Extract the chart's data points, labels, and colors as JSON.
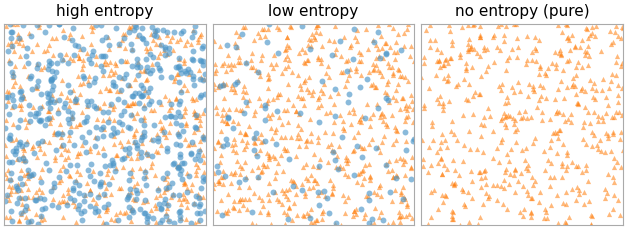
{
  "titles": [
    "high entropy",
    "low entropy",
    "no entropy (pure)"
  ],
  "n_high_orange": 500,
  "n_high_blue": 500,
  "n_low_orange": 600,
  "n_low_blue": 100,
  "n_pure_orange": 500,
  "n_pure_blue": 0,
  "orange_color": "#ff7f0e",
  "blue_color": "#4c96c8",
  "marker_orange": "^",
  "marker_blue": "o",
  "marker_size_orange": 14,
  "marker_size_blue": 18,
  "alpha_orange": 0.55,
  "alpha_blue": 0.65,
  "xlim": [
    0,
    1
  ],
  "ylim": [
    0,
    1
  ],
  "seed_high": 42,
  "seed_low": 7,
  "seed_pure": 99,
  "figsize": [
    6.27,
    2.3
  ],
  "dpi": 100,
  "title_fontsize": 11,
  "spine_color": "#aaaaaa",
  "spine_linewidth": 0.8
}
